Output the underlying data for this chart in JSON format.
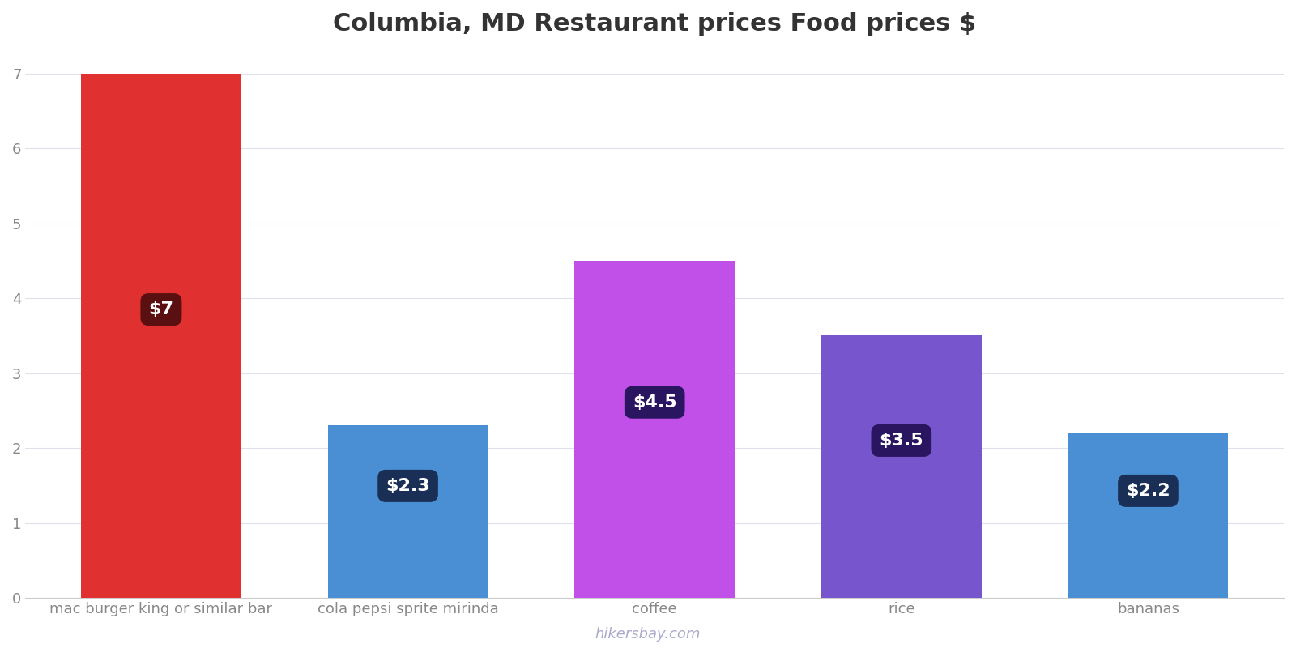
{
  "title": "Columbia, MD Restaurant prices Food prices $",
  "categories": [
    "mac burger king or similar bar",
    "cola pepsi sprite mirinda",
    "coffee",
    "rice",
    "bananas"
  ],
  "values": [
    7.0,
    2.3,
    4.5,
    3.5,
    2.2
  ],
  "labels": [
    "$7",
    "$2.3",
    "$4.5",
    "$3.5",
    "$2.2"
  ],
  "bar_colors": [
    "#e03030",
    "#4a8fd4",
    "#c050e8",
    "#7755cc",
    "#4a8fd4"
  ],
  "label_box_colors": [
    "#5a1010",
    "#1a2f55",
    "#2a1560",
    "#2a1560",
    "#1a2f55"
  ],
  "ylim": [
    0,
    7.3
  ],
  "yticks": [
    0,
    1,
    2,
    3,
    4,
    5,
    6,
    7
  ],
  "background_color": "#ffffff",
  "grid_color": "#e0e0ee",
  "title_fontsize": 22,
  "tick_fontsize": 13,
  "label_fontsize": 16,
  "watermark": "hikersbay.com",
  "watermark_color": "#aaaacc"
}
